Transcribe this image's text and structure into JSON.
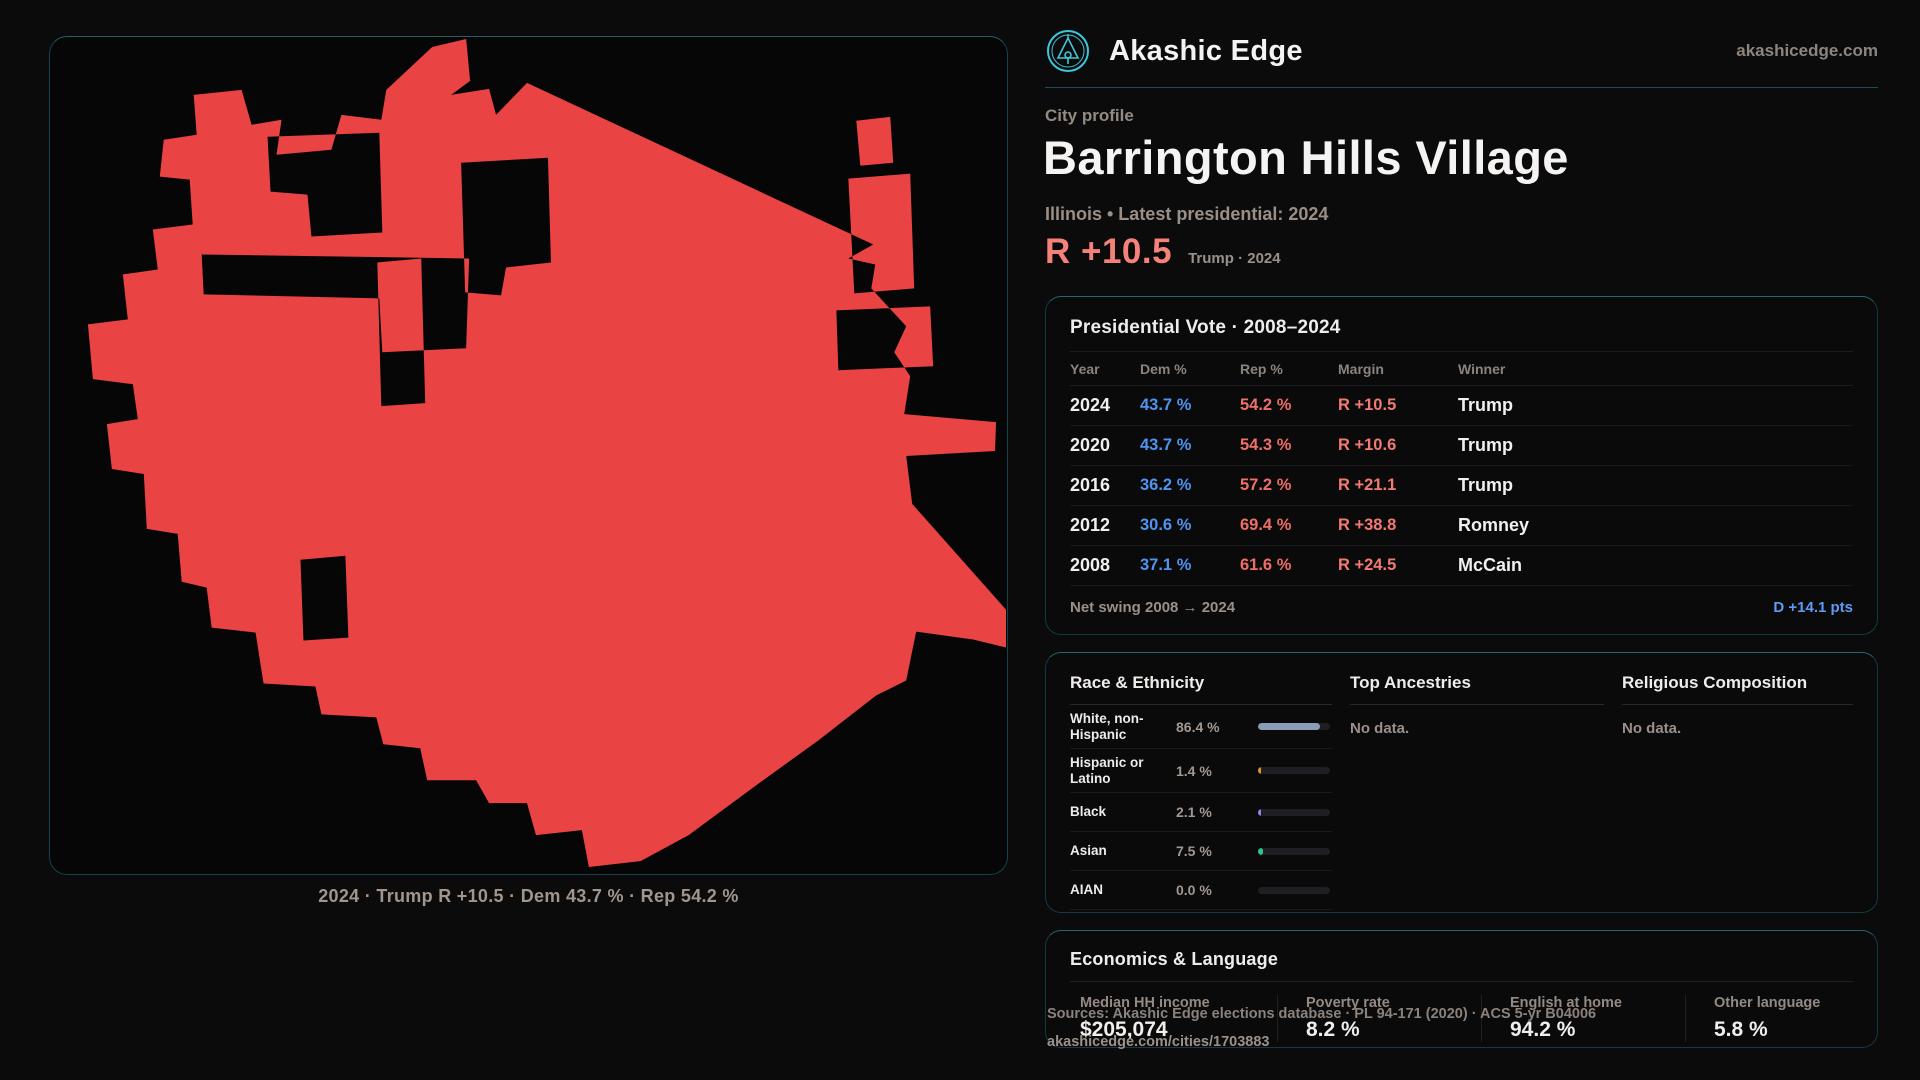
{
  "brand": {
    "name": "Akashic Edge",
    "domain": "akashicedge.com",
    "logo_icon": "compass-emblem-icon",
    "accent": "#3ec7da"
  },
  "header": {
    "kicker": "City profile",
    "title": "Barrington Hills Village",
    "subtitle": "Illinois • Latest presidential: 2024",
    "lead_margin": "R +10.5",
    "lead_context": "Trump · 2024",
    "lead_color": "#f5827a"
  },
  "map": {
    "fill": "#ea4343",
    "caption": "2024 · Trump R +10.5 · Dem 43.7 % · Rep 54.2 %"
  },
  "votes": {
    "title": "Presidential Vote · 2008–2024",
    "columns": {
      "year": "Year",
      "dem": "Dem %",
      "rep": "Rep %",
      "margin": "Margin",
      "winner": "Winner"
    },
    "rows": [
      {
        "year": "2024",
        "dem": "43.7 %",
        "rep": "54.2 %",
        "margin": "R +10.5",
        "winner": "Trump"
      },
      {
        "year": "2020",
        "dem": "43.7 %",
        "rep": "54.3 %",
        "margin": "R +10.6",
        "winner": "Trump"
      },
      {
        "year": "2016",
        "dem": "36.2 %",
        "rep": "57.2 %",
        "margin": "R +21.1",
        "winner": "Trump"
      },
      {
        "year": "2012",
        "dem": "30.6 %",
        "rep": "69.4 %",
        "margin": "R +38.8",
        "winner": "Romney"
      },
      {
        "year": "2008",
        "dem": "37.1 %",
        "rep": "61.6 %",
        "margin": "R +24.5",
        "winner": "McCain"
      }
    ],
    "net_swing_label": "Net swing 2008 → 2024",
    "net_swing_value": "D +14.1 pts",
    "dem_color": "#4e94f0",
    "rep_color": "#ef6e66",
    "swing_color": "#5d9bf5"
  },
  "demographics": {
    "race": {
      "title": "Race & Ethnicity",
      "rows": [
        {
          "label": "White, non-Hispanic",
          "value": "86.4 %",
          "pct": 86.4,
          "color": "#8b9cb8"
        },
        {
          "label": "Hispanic or Latino",
          "value": "1.4 %",
          "pct": 1.4,
          "color": "#e2932f"
        },
        {
          "label": "Black",
          "value": "2.1 %",
          "pct": 2.1,
          "color": "#8d84ee"
        },
        {
          "label": "Asian",
          "value": "7.5 %",
          "pct": 7.5,
          "color": "#2ec487"
        },
        {
          "label": "AIAN",
          "value": "0.0 %",
          "pct": 0,
          "color": "#2a2b2f"
        }
      ]
    },
    "ancestries": {
      "title": "Top Ancestries",
      "empty": "No data."
    },
    "religion": {
      "title": "Religious Composition",
      "empty": "No data."
    }
  },
  "economics": {
    "title": "Economics & Language",
    "stats": [
      {
        "label": "Median HH income",
        "value": "$205,074"
      },
      {
        "label": "Poverty rate",
        "value": "8.2 %"
      },
      {
        "label": "English at home",
        "value": "94.2 %"
      },
      {
        "label": "Other language",
        "value": "5.8 %"
      }
    ]
  },
  "footer": {
    "sources": "Sources: Akashic Edge elections database · PL 94-171 (2020) · ACS 5-yr B04006",
    "permalink": "akashicedge.com/cities/1703883"
  }
}
